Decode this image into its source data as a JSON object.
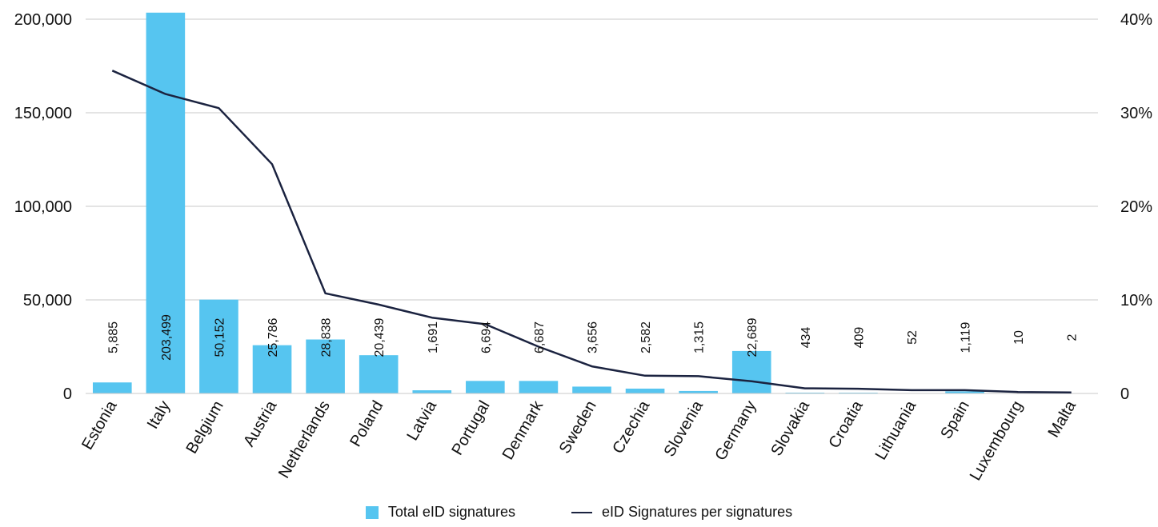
{
  "chart_data": {
    "type": "bar",
    "categories": [
      "Estonia",
      "Italy",
      "Belgium",
      "Austria",
      "Netherlands",
      "Poland",
      "Latvia",
      "Portugal",
      "Denmark",
      "Sweden",
      "Czechia",
      "Slovenia",
      "Germany",
      "Slovakia",
      "Croatia",
      "Lithuania",
      "Spain",
      "Luxembourg",
      "Malta"
    ],
    "series": [
      {
        "name": "Total eID signatures",
        "type": "bar",
        "axis": "left",
        "color": "#56C5F0",
        "values": [
          5885,
          203499,
          50152,
          25786,
          28838,
          20439,
          1691,
          6694,
          6687,
          3656,
          2582,
          1315,
          22689,
          434,
          409,
          52,
          1119,
          10,
          2
        ],
        "data_labels": [
          "5,885",
          "203,499",
          "50,152",
          "25,786",
          "28,838",
          "20,439",
          "1,691",
          "6,694",
          "6,687",
          "3,656",
          "2,582",
          "1,315",
          "22,689",
          "434",
          "409",
          "52",
          "1,119",
          "10",
          "2"
        ]
      },
      {
        "name": "eID Signatures per signatures",
        "type": "line",
        "axis": "right",
        "color": "#1B2340",
        "values": [
          34.5,
          32.0,
          30.5,
          24.5,
          10.7,
          9.5,
          8.1,
          7.4,
          5.0,
          2.9,
          1.9,
          1.85,
          1.3,
          0.55,
          0.5,
          0.35,
          0.35,
          0.15,
          0.1
        ]
      }
    ],
    "y_left": {
      "ylim": [
        0,
        200000
      ],
      "ticks": [
        0,
        50000,
        100000,
        150000,
        200000
      ],
      "tick_labels": [
        "0",
        "50,000",
        "100,000",
        "150,000",
        "200,000"
      ]
    },
    "y_right": {
      "ylim": [
        0,
        40
      ],
      "ticks": [
        0,
        10,
        20,
        30,
        40
      ],
      "tick_labels": [
        "0",
        "10%",
        "20%",
        "30%",
        "40%"
      ]
    },
    "grid": true,
    "legend": "bottom"
  }
}
